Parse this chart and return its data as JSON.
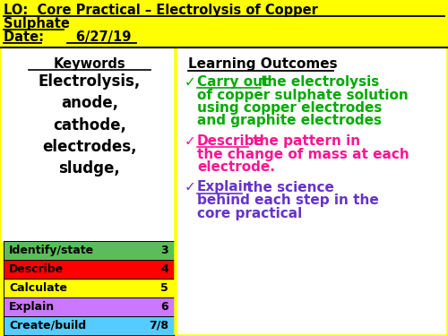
{
  "background_color": "#FFFF00",
  "header_line1": "LO:  Core Practical – Electrolysis of Copper",
  "header_line2": "Sulphate",
  "header_date": "Date:       6/27/19",
  "keywords_title": "Keywords",
  "keywords_body": "Electrolysis,\nanode,\ncathode,\nelectrodes,\nsludge,",
  "lo_table": [
    {
      "label": "Identify/state",
      "num": "3",
      "color": "#5BBD5A"
    },
    {
      "label": "Describe",
      "num": "4",
      "color": "#FF0000"
    },
    {
      "label": "Calculate",
      "num": "5",
      "color": "#FFFF00"
    },
    {
      "label": "Explain",
      "num": "6",
      "color": "#CC77FF"
    },
    {
      "label": "Create/build",
      "num": "7/8",
      "color": "#55CCFF"
    }
  ],
  "learning_outcomes_title": "Learning Outcomes",
  "learning_outcomes": [
    {
      "check": "✓",
      "keyword": "Carry out ",
      "rest": "the electrolysis\nof copper sulphate solution\nusing copper electrodes\nand graphite electrodes",
      "color": "#00AA00"
    },
    {
      "check": "✓",
      "keyword": "Describe",
      "rest": " the pattern in\nthe change of mass at each\nelectrode.",
      "color": "#FF1493"
    },
    {
      "check": "✓",
      "keyword": "Explain",
      "rest": " the science\nbehind each step in the\ncore practical",
      "color": "#6633CC"
    }
  ]
}
